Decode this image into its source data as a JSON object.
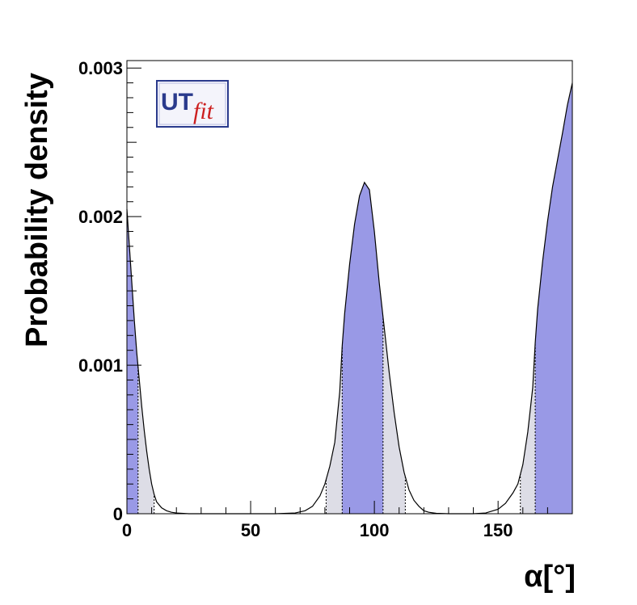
{
  "chart_data": {
    "type": "area",
    "title": "",
    "xlabel": "α[°]",
    "ylabel": "Probability density",
    "xlim": [
      0,
      180
    ],
    "ylim": [
      0,
      0.00305
    ],
    "x_ticks": [
      0,
      50,
      100,
      150
    ],
    "x_tick_labels": [
      "0",
      "50",
      "100",
      "150"
    ],
    "y_ticks": [
      0,
      0.001,
      0.002,
      0.003
    ],
    "y_tick_labels": [
      "0",
      "0.001",
      "0.002",
      "0.003"
    ],
    "grid": false,
    "legend": "none",
    "series": [
      {
        "x": [
          0,
          1,
          2,
          3,
          4,
          5,
          6,
          7,
          8,
          9,
          10,
          11,
          12,
          14,
          16,
          18,
          20,
          25,
          60,
          68,
          72,
          75,
          78,
          80,
          82,
          84,
          86,
          87,
          88,
          90,
          92,
          94,
          96,
          98,
          100,
          102,
          104,
          106,
          108,
          110,
          112,
          114,
          116,
          118,
          120,
          122,
          125,
          130,
          140,
          145,
          150,
          153,
          156,
          158,
          160,
          162,
          164,
          165,
          166,
          168,
          170,
          172,
          174,
          176,
          178,
          180
        ],
        "y": [
          0.00205,
          0.0018,
          0.00155,
          0.0013,
          0.00108,
          0.0009,
          0.00072,
          0.00056,
          0.00042,
          0.0003,
          0.0002,
          0.00013,
          8e-05,
          4e-05,
          2e-05,
          1e-05,
          5e-06,
          0.0,
          0.0,
          5e-06,
          2e-05,
          5e-05,
          0.00012,
          0.0002,
          0.00032,
          0.00048,
          0.00082,
          0.00113,
          0.00135,
          0.00168,
          0.00195,
          0.00214,
          0.00223,
          0.00218,
          0.0019,
          0.00155,
          0.00125,
          0.00095,
          0.00068,
          0.00045,
          0.00028,
          0.00016,
          9e-05,
          5e-05,
          2e-05,
          1e-05,
          3e-06,
          0.0,
          0.0,
          5e-06,
          3e-05,
          7e-05,
          0.00014,
          0.0002,
          0.00033,
          0.00055,
          0.00085,
          0.00115,
          0.00138,
          0.0017,
          0.00197,
          0.0022,
          0.00238,
          0.00256,
          0.00275,
          0.0029
        ]
      }
    ],
    "bands_68": [
      [
        0,
        4.5
      ],
      [
        87,
        103.5
      ],
      [
        165,
        180
      ]
    ],
    "bands_95": [
      [
        0,
        11
      ],
      [
        80.5,
        112.5
      ],
      [
        159,
        180
      ]
    ],
    "colors": {
      "band_68": "#9999e6",
      "band_95": "#dddde6",
      "curve": "#000000",
      "frame": "#000000"
    }
  },
  "logo": {
    "text_main": "UT",
    "text_sub": "fit",
    "colors": {
      "main": "#2a3a8c",
      "sub": "#cc1f1f",
      "frame": "#2a3a8c"
    }
  }
}
